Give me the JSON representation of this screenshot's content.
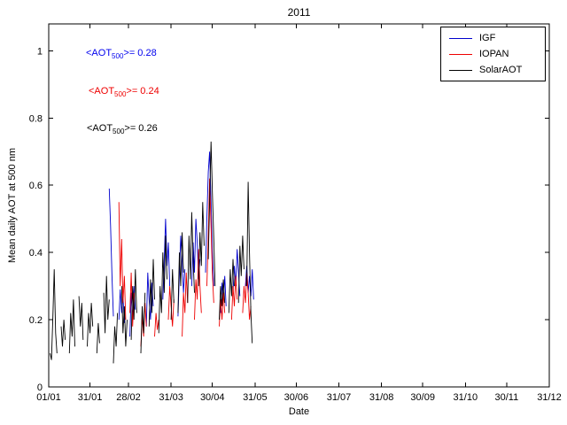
{
  "title": "2011",
  "xlabel": "Date",
  "ylabel": "Mean daily AOT at 500 nm",
  "annotations": [
    {
      "prefix": "<AOT",
      "sub": "500",
      "suffix": ">= 0.28",
      "color": "#0000ee",
      "series": "IGF"
    },
    {
      "prefix": "<AOT",
      "sub": "500",
      "suffix": ">= 0.24",
      "color": "#ee0000",
      "series": "IOPAN"
    },
    {
      "prefix": "<AOT",
      "sub": "500",
      "suffix": ">= 0.26",
      "color": "#000000",
      "series": "SolarAOT"
    }
  ],
  "legend": {
    "position": "top-right",
    "items": [
      {
        "label": "IGF",
        "color": "#0000cd"
      },
      {
        "label": "IOPAN",
        "color": "#ee0000"
      },
      {
        "label": "SolarAOT",
        "color": "#000000"
      }
    ]
  },
  "chart_data": {
    "type": "line",
    "title": "2011",
    "xlabel": "Date",
    "ylabel": "Mean daily AOT at 500 nm",
    "x_unit": "day_of_year_2011",
    "xlim": [
      1,
      365
    ],
    "ylim": [
      0,
      1.08
    ],
    "grid": false,
    "y_ticks": [
      0,
      0.2,
      0.4,
      0.6,
      0.8,
      1
    ],
    "x_ticks": [
      {
        "day": 1,
        "label": "01/01"
      },
      {
        "day": 31,
        "label": "31/01"
      },
      {
        "day": 59,
        "label": "28/02"
      },
      {
        "day": 90,
        "label": "31/03"
      },
      {
        "day": 120,
        "label": "30/04"
      },
      {
        "day": 151,
        "label": "31/05"
      },
      {
        "day": 181,
        "label": "30/06"
      },
      {
        "day": 212,
        "label": "31/07"
      },
      {
        "day": 243,
        "label": "31/08"
      },
      {
        "day": 273,
        "label": "30/09"
      },
      {
        "day": 304,
        "label": "31/10"
      },
      {
        "day": 334,
        "label": "30/11"
      },
      {
        "day": 365,
        "label": "31/12"
      }
    ],
    "series": [
      {
        "name": "IGF",
        "color": "#0000cd",
        "mean_aot_500": 0.28,
        "segments": [
          [
            [
              45,
              0.59
            ],
            [
              46,
              0.48
            ],
            [
              47,
              0.33
            ],
            [
              48,
              0.21
            ]
          ],
          [
            [
              52,
              0.2
            ],
            [
              53,
              0.29
            ],
            [
              54,
              0.22
            ],
            [
              55,
              0.27
            ],
            [
              56,
              0.19
            ]
          ],
          [
            [
              60,
              0.15
            ],
            [
              61,
              0.28
            ],
            [
              62,
              0.2
            ],
            [
              63,
              0.3
            ],
            [
              64,
              0.23
            ]
          ],
          [
            [
              72,
              0.18
            ],
            [
              73,
              0.34
            ],
            [
              74,
              0.26
            ],
            [
              75,
              0.2
            ],
            [
              76,
              0.31
            ],
            [
              77,
              0.24
            ]
          ],
          [
            [
              84,
              0.26
            ],
            [
              85,
              0.38
            ],
            [
              86,
              0.5
            ],
            [
              87,
              0.36
            ],
            [
              88,
              0.43
            ],
            [
              89,
              0.3
            ]
          ],
          [
            [
              95,
              0.21
            ],
            [
              96,
              0.34
            ],
            [
              97,
              0.45
            ],
            [
              98,
              0.37
            ],
            [
              99,
              0.28
            ],
            [
              100,
              0.35
            ]
          ],
          [
            [
              105,
              0.3
            ],
            [
              106,
              0.43
            ],
            [
              107,
              0.34
            ],
            [
              108,
              0.5
            ],
            [
              109,
              0.43
            ],
            [
              110,
              0.32
            ],
            [
              111,
              0.38
            ]
          ],
          [
            [
              115,
              0.34
            ],
            [
              116,
              0.5
            ],
            [
              117,
              0.64
            ],
            [
              118,
              0.7
            ],
            [
              119,
              0.55
            ],
            [
              120,
              0.4
            ],
            [
              121,
              0.3
            ]
          ],
          [
            [
              126,
              0.22
            ],
            [
              127,
              0.31
            ],
            [
              128,
              0.26
            ],
            [
              129,
              0.33
            ],
            [
              130,
              0.24
            ]
          ],
          [
            [
              135,
              0.28
            ],
            [
              136,
              0.36
            ],
            [
              137,
              0.3
            ],
            [
              138,
              0.41
            ],
            [
              139,
              0.34
            ],
            [
              140,
              0.27
            ]
          ],
          [
            [
              144,
              0.3
            ],
            [
              145,
              0.36
            ],
            [
              146,
              0.28
            ],
            [
              147,
              0.33
            ],
            [
              148,
              0.27
            ],
            [
              149,
              0.35
            ],
            [
              150,
              0.26
            ]
          ]
        ]
      },
      {
        "name": "IOPAN",
        "color": "#ee0000",
        "mean_aot_500": 0.24,
        "segments": [
          [
            [
              52,
              0.55
            ],
            [
              53,
              0.3
            ],
            [
              54,
              0.44
            ],
            [
              55,
              0.25
            ],
            [
              56,
              0.33
            ],
            [
              57,
              0.2
            ]
          ],
          [
            [
              60,
              0.22
            ],
            [
              61,
              0.34
            ],
            [
              62,
              0.18
            ],
            [
              63,
              0.28
            ]
          ],
          [
            [
              68,
              0.12
            ],
            [
              69,
              0.21
            ],
            [
              70,
              0.15
            ],
            [
              71,
              0.25
            ],
            [
              72,
              0.18
            ]
          ],
          [
            [
              78,
              0.15
            ],
            [
              79,
              0.22
            ],
            [
              80,
              0.17
            ],
            [
              81,
              0.2
            ]
          ],
          [
            [
              88,
              0.2
            ],
            [
              89,
              0.3
            ],
            [
              90,
              0.24
            ],
            [
              91,
              0.18
            ],
            [
              92,
              0.26
            ]
          ],
          [
            [
              98,
              0.15
            ],
            [
              99,
              0.28
            ],
            [
              100,
              0.22
            ],
            [
              101,
              0.34
            ],
            [
              102,
              0.25
            ]
          ],
          [
            [
              107,
              0.2
            ],
            [
              108,
              0.32
            ],
            [
              109,
              0.26
            ],
            [
              110,
              0.41
            ],
            [
              111,
              0.3
            ],
            [
              112,
              0.22
            ]
          ],
          [
            [
              116,
              0.3
            ],
            [
              117,
              0.45
            ],
            [
              118,
              0.62
            ],
            [
              119,
              0.48
            ],
            [
              120,
              0.34
            ],
            [
              121,
              0.25
            ]
          ],
          [
            [
              125,
              0.18
            ],
            [
              126,
              0.26
            ],
            [
              127,
              0.2
            ],
            [
              128,
              0.28
            ],
            [
              129,
              0.22
            ]
          ],
          [
            [
              134,
              0.2
            ],
            [
              135,
              0.3
            ],
            [
              136,
              0.24
            ],
            [
              137,
              0.33
            ],
            [
              138,
              0.26
            ]
          ],
          [
            [
              142,
              0.22
            ],
            [
              143,
              0.3
            ],
            [
              144,
              0.25
            ],
            [
              145,
              0.34
            ],
            [
              146,
              0.28
            ],
            [
              147,
              0.2
            ],
            [
              148,
              0.24
            ]
          ]
        ]
      },
      {
        "name": "SolarAOT",
        "color": "#000000",
        "mean_aot_500": 0.26,
        "segments": [
          [
            [
              2,
              0.1
            ],
            [
              3,
              0.08
            ],
            [
              4,
              0.21
            ],
            [
              5,
              0.35
            ],
            [
              6,
              0.16
            ],
            [
              7,
              0.1
            ]
          ],
          [
            [
              10,
              0.18
            ],
            [
              11,
              0.12
            ],
            [
              12,
              0.2
            ],
            [
              13,
              0.14
            ]
          ],
          [
            [
              16,
              0.1
            ],
            [
              17,
              0.22
            ],
            [
              18,
              0.15
            ],
            [
              19,
              0.26
            ],
            [
              20,
              0.12
            ]
          ],
          [
            [
              23,
              0.27
            ],
            [
              24,
              0.18
            ],
            [
              25,
              0.25
            ],
            [
              26,
              0.14
            ]
          ],
          [
            [
              29,
              0.12
            ],
            [
              30,
              0.22
            ],
            [
              31,
              0.16
            ],
            [
              32,
              0.25
            ],
            [
              33,
              0.18
            ]
          ],
          [
            [
              36,
              0.1
            ],
            [
              37,
              0.19
            ],
            [
              38,
              0.13
            ]
          ],
          [
            [
              41,
              0.28
            ],
            [
              42,
              0.16
            ],
            [
              43,
              0.33
            ],
            [
              44,
              0.2
            ],
            [
              45,
              0.26
            ]
          ],
          [
            [
              48,
              0.07
            ],
            [
              49,
              0.18
            ],
            [
              50,
              0.12
            ],
            [
              51,
              0.22
            ]
          ],
          [
            [
              54,
              0.3
            ],
            [
              55,
              0.16
            ],
            [
              56,
              0.24
            ],
            [
              57,
              0.12
            ],
            [
              58,
              0.2
            ]
          ],
          [
            [
              61,
              0.14
            ],
            [
              62,
              0.3
            ],
            [
              63,
              0.2
            ],
            [
              64,
              0.35
            ],
            [
              65,
              0.22
            ]
          ],
          [
            [
              68,
              0.1
            ],
            [
              69,
              0.24
            ],
            [
              70,
              0.16
            ],
            [
              71,
              0.28
            ]
          ],
          [
            [
              74,
              0.18
            ],
            [
              75,
              0.32
            ],
            [
              76,
              0.22
            ],
            [
              77,
              0.38
            ],
            [
              78,
              0.26
            ]
          ],
          [
            [
              81,
              0.16
            ],
            [
              82,
              0.3
            ],
            [
              83,
              0.22
            ],
            [
              84,
              0.4
            ],
            [
              85,
              0.28
            ],
            [
              86,
              0.45
            ],
            [
              87,
              0.32
            ]
          ],
          [
            [
              90,
              0.2
            ],
            [
              91,
              0.35
            ],
            [
              92,
              0.25
            ]
          ],
          [
            [
              95,
              0.22
            ],
            [
              96,
              0.4
            ],
            [
              97,
              0.3
            ],
            [
              98,
              0.46
            ],
            [
              99,
              0.34
            ]
          ],
          [
            [
              102,
              0.25
            ],
            [
              103,
              0.45
            ],
            [
              104,
              0.32
            ],
            [
              105,
              0.52
            ],
            [
              106,
              0.38
            ],
            [
              107,
              0.28
            ]
          ],
          [
            [
              110,
              0.3
            ],
            [
              111,
              0.46
            ],
            [
              112,
              0.36
            ],
            [
              113,
              0.55
            ],
            [
              114,
              0.42
            ]
          ],
          [
            [
              117,
              0.38
            ],
            [
              118,
              0.55
            ],
            [
              119,
              0.73
            ],
            [
              120,
              0.58
            ],
            [
              121,
              0.44
            ],
            [
              122,
              0.3
            ]
          ],
          [
            [
              125,
              0.2
            ],
            [
              126,
              0.3
            ],
            [
              127,
              0.24
            ],
            [
              128,
              0.32
            ],
            [
              129,
              0.25
            ]
          ],
          [
            [
              132,
              0.22
            ],
            [
              133,
              0.35
            ],
            [
              134,
              0.27
            ],
            [
              135,
              0.38
            ],
            [
              136,
              0.3
            ]
          ],
          [
            [
              139,
              0.25
            ],
            [
              140,
              0.42
            ],
            [
              141,
              0.33
            ],
            [
              142,
              0.45
            ],
            [
              143,
              0.35
            ]
          ],
          [
            [
              145,
              0.3
            ],
            [
              146,
              0.61
            ],
            [
              147,
              0.4
            ],
            [
              148,
              0.22
            ],
            [
              149,
              0.13
            ]
          ]
        ]
      }
    ]
  }
}
